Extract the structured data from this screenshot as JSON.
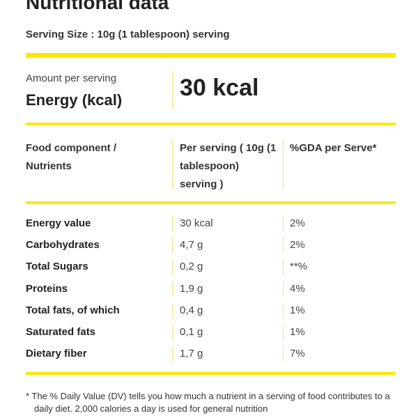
{
  "title": "Nutritional data",
  "serving_size": "Serving Size : 10g (1 tablespoon) serving",
  "amount_label": "Amount per serving",
  "energy_label": "Energy (kcal)",
  "energy_value": "30 kcal",
  "headers": {
    "component": "Food component / Nutrients",
    "per_serving": "Per serving ( 10g (1 tablespoon) serving )",
    "gda": "%GDA per Serve*"
  },
  "rows": [
    {
      "name": "Energy value",
      "amount": "30 kcal",
      "gda": "2%"
    },
    {
      "name": "Carbohydrates",
      "amount": "4,7 g",
      "gda": "2%"
    },
    {
      "name": "Total Sugars",
      "amount": "0,2 g",
      "gda": "**%"
    },
    {
      "name": "Proteins",
      "amount": "1,9 g",
      "gda": "4%"
    },
    {
      "name": "Total fats, of which",
      "amount": "0,4 g",
      "gda": "1%"
    },
    {
      "name": "Saturated fats",
      "amount": "0,1 g",
      "gda": "1%"
    },
    {
      "name": "Dietary fiber",
      "amount": "1,7 g",
      "gda": "7%"
    }
  ],
  "footnote": "* The % Daily Value (DV) tells you how much a nutrient in a serving of food contributes to a daily diet. 2,000 calories a day is used for general nutrition",
  "colors": {
    "accent_bar": "#fbe800",
    "separator": "#f0e27a",
    "text": "#222222"
  }
}
